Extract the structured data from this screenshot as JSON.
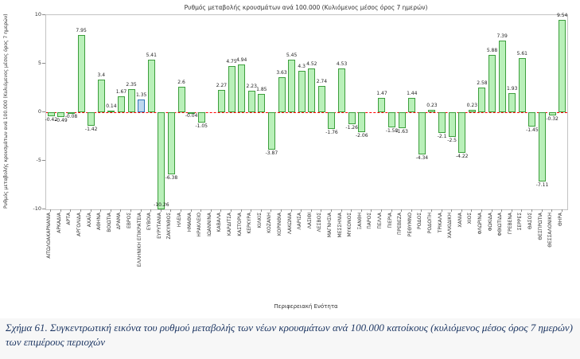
{
  "page": {
    "caption": "Σχήμα 61. Συγκεντρωτική εικόνα του ρυθμού μεταβολής των νέων κρουσμάτων ανά 100.000 κατοίκους (κυλιόμενος μέσος όρος 7 ημερών) των επιμέρους περιοχών"
  },
  "chart_data": {
    "type": "bar",
    "title": "Ρυθμός μεταβολής κρουσμάτων ανά 100.000 (Κυλιόμενος μέσος όρος 7 ημερών)",
    "xlabel": "Περιφερειακή Ενότητα",
    "ylabel": "Ρυθμός μεταβολής κρουσμάτων ανά 100.000 (Κυλιόμενος μέσος όρος 7 ημερών)",
    "ylim": [
      -10,
      10
    ],
    "yticks": [
      10,
      5,
      0,
      -5,
      -10
    ],
    "grid": false,
    "legend": "none",
    "zero_line_color": "#ff0000",
    "zero_line_style": "dashed",
    "bar_fill": "#b9f0b9",
    "bar_border": "#3c9e3c",
    "highlight_category": "ΕΛΛΗΝΙΚΗ ΕΠΙΚΡΑΤΕΙΑ",
    "highlight_fill": "#bdd7ee",
    "highlight_border": "#2e75b6",
    "categories": [
      "ΑΙΤΩΛΟΑΚΑΡΝΑΝΙΑ",
      "ΑΡΚΑΔΙΑ",
      "ΑΡΤΑ",
      "ΑΡΓΟΛΙΔΑ",
      "ΑΧΑΪΑ",
      "ΑΘΗΝΑ",
      "ΒΟΙΩΤΙΑ",
      "ΔΡΑΜΑ",
      "ΕΒΡΟΣ",
      "ΕΛΛΗΝΙΚΗ ΕΠΙΚΡΑΤΕΙΑ",
      "ΕΥΒΟΙΑ",
      "ΕΥΡΥΤΑΝΙΑ",
      "ΖΑΚΥΝΘΟΣ",
      "ΗΛΕΙΑ",
      "ΗΜΑΘΙΑ",
      "ΗΡΑΚΛΕΙΟ",
      "ΙΩΑΝΝΙΝΑ",
      "ΚΑΒΑΛΑ",
      "ΚΑΡΔΙΤΣΑ",
      "ΚΑΣΤΟΡΙΑ",
      "ΚΕΡΚΥΡΑ",
      "ΚΙΛΚΙΣ",
      "ΚΟΖΑΝΗ",
      "ΚΟΡΙΝΘΙΑ",
      "ΛΑΚΩΝΙΑ",
      "ΛΑΡΙΣΑ",
      "ΛΑΣΙΘΙ",
      "ΛΕΣΒΟΣ",
      "ΜΑΓΝΗΣΙΑ",
      "ΜΕΣΣΗΝΙΑ",
      "ΜΥΚΟΝΟΣ",
      "ΞΑΝΘΗ",
      "ΠΑΡΟΣ",
      "ΠΕΛΛΑ",
      "ΠΙΕΡΙΑ",
      "ΠΡΕΒΕΖΑ",
      "ΡΕΘΥΜΝΟ",
      "ΡΟΔΟΣ",
      "ΡΟΔΟΠΗ",
      "ΤΡΙΚΑΛΑ",
      "ΧΑΛΚΙΔΙΚΗ",
      "ΧΑΝΙΑ",
      "ΧΙΟΣ",
      "ΦΛΩΡΙΝΑ",
      "ΦΩΚΙΔΑ",
      "ΦΘΙΩΤΙΔΑ",
      "ΓΡΕΒΕΝΑ",
      "ΣΕΡΡΕΣ",
      "ΘΑΣΟΣ",
      "ΘΕΣΠΡΩΤΙΑ",
      "ΘΕΣΣΑΛΟΝΙΚΗ",
      "ΘΗΡΑ"
    ],
    "values": [
      -0.42,
      -0.49,
      -0.08,
      7.95,
      -1.42,
      3.4,
      0.14,
      1.67,
      2.35,
      1.35,
      5.41,
      -10.26,
      -6.38,
      2.6,
      -0.04,
      -1.05,
      0,
      2.27,
      4.75,
      4.94,
      2.23,
      1.85,
      -3.87,
      3.63,
      5.45,
      4.3,
      4.52,
      2.74,
      -1.76,
      4.53,
      -1.26,
      -2.06,
      0,
      1.47,
      -1.58,
      -1.63,
      1.44,
      -4.34,
      0.23,
      -2.1,
      -2.5,
      -4.22,
      0.23,
      2.58,
      5.88,
      7.39,
      1.93,
      5.61,
      -1.45,
      -7.11,
      -0.32,
      9.54
    ]
  }
}
